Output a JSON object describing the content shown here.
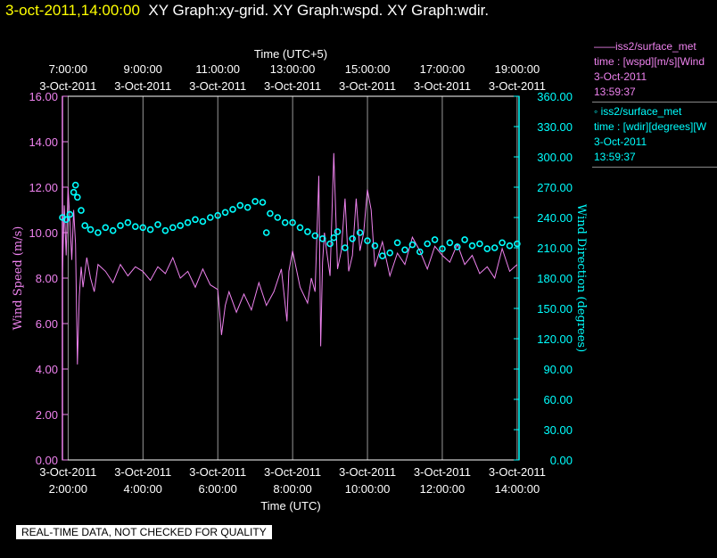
{
  "header": {
    "date": "3-oct-2011,14:00:00",
    "title": "XY Graph:xy-grid.  XY Graph:wspd.  XY Graph:wdir."
  },
  "legend": {
    "wspd": {
      "name": "——iss2/surface_met",
      "desc": "time : [wspd][m/s][Wind",
      "date": "3-Oct-2011",
      "time": "13:59:37"
    },
    "wdir": {
      "name": "◦  iss2/surface_met",
      "desc": "time : [wdir][degrees][W",
      "date": "3-Oct-2011",
      "time": "13:59:37"
    }
  },
  "disclaimer": "REAL-TIME DATA, NOT CHECKED FOR QUALITY",
  "colors": {
    "wspd": "#ee82ee",
    "wdir": "#00ffff",
    "grid": "#ffffff",
    "text": "#ffffff"
  },
  "chart_data": {
    "type": "line",
    "x_axis_bottom": {
      "label": "Time (UTC)",
      "range": [
        1.85,
        14.05
      ],
      "ticks": [
        {
          "x": 2,
          "date": "3-Oct-2011",
          "time": "2:00:00"
        },
        {
          "x": 4,
          "date": "3-Oct-2011",
          "time": "4:00:00"
        },
        {
          "x": 6,
          "date": "3-Oct-2011",
          "time": "6:00:00"
        },
        {
          "x": 8,
          "date": "3-Oct-2011",
          "time": "8:00:00"
        },
        {
          "x": 10,
          "date": "3-Oct-2011",
          "time": "10:00:00"
        },
        {
          "x": 12,
          "date": "3-Oct-2011",
          "time": "12:00:00"
        },
        {
          "x": 14,
          "date": "3-Oct-2011",
          "time": "14:00:00"
        }
      ]
    },
    "x_axis_top": {
      "label": "Time (UTC+5)",
      "ticks": [
        {
          "x": 2,
          "time": "7:00:00",
          "date": "3-Oct-2011"
        },
        {
          "x": 4,
          "time": "9:00:00",
          "date": "3-Oct-2011"
        },
        {
          "x": 6,
          "time": "11:00:00",
          "date": "3-Oct-2011"
        },
        {
          "x": 8,
          "time": "13:00:00",
          "date": "3-Oct-2011"
        },
        {
          "x": 10,
          "time": "15:00:00",
          "date": "3-Oct-2011"
        },
        {
          "x": 12,
          "time": "17:00:00",
          "date": "3-Oct-2011"
        },
        {
          "x": 14,
          "time": "19:00:00",
          "date": "3-Oct-2011"
        }
      ]
    },
    "y_left": {
      "label": "Wind Speed (m/s)",
      "range": [
        0,
        16
      ],
      "ticks": [
        "0.00",
        "2.00",
        "4.00",
        "6.00",
        "8.00",
        "10.00",
        "12.00",
        "14.00",
        "16.00"
      ]
    },
    "y_right": {
      "label": "Wind Direction (degrees)",
      "range": [
        0,
        360
      ],
      "ticks": [
        "0.00",
        "30.00",
        "60.00",
        "90.00",
        "120.00",
        "150.00",
        "180.00",
        "210.00",
        "240.00",
        "270.00",
        "300.00",
        "330.00",
        "360.00"
      ]
    },
    "grid": "vertical",
    "series": [
      {
        "name": "iss2/surface_met",
        "axis": "left",
        "style": "line",
        "x": [
          1.85,
          1.9,
          1.95,
          2.0,
          2.05,
          2.1,
          2.15,
          2.2,
          2.25,
          2.3,
          2.35,
          2.4,
          2.5,
          2.6,
          2.7,
          2.8,
          3.0,
          3.2,
          3.4,
          3.6,
          3.8,
          4.0,
          4.2,
          4.4,
          4.6,
          4.8,
          5.0,
          5.2,
          5.4,
          5.6,
          5.8,
          6.0,
          6.1,
          6.2,
          6.3,
          6.5,
          6.7,
          6.9,
          7.1,
          7.3,
          7.5,
          7.7,
          7.85,
          7.9,
          8.0,
          8.2,
          8.4,
          8.5,
          8.6,
          8.7,
          8.75,
          8.8,
          8.85,
          8.9,
          9.0,
          9.1,
          9.2,
          9.3,
          9.4,
          9.5,
          9.6,
          9.7,
          9.8,
          9.9,
          10.0,
          10.1,
          10.2,
          10.4,
          10.6,
          10.8,
          11.0,
          11.2,
          11.4,
          11.6,
          11.8,
          12.0,
          12.2,
          12.4,
          12.6,
          12.8,
          13.0,
          13.2,
          13.4,
          13.6,
          13.8,
          14.0
        ],
        "y": [
          8.2,
          11.2,
          9.0,
          12.0,
          10.5,
          8.8,
          11.0,
          9.5,
          4.2,
          7.2,
          8.5,
          7.6,
          8.9,
          8.0,
          7.4,
          8.6,
          8.3,
          7.8,
          8.6,
          8.1,
          8.5,
          8.3,
          7.9,
          8.5,
          8.2,
          8.9,
          8.0,
          8.3,
          7.6,
          8.4,
          7.7,
          7.5,
          5.5,
          6.8,
          7.4,
          6.5,
          7.3,
          6.6,
          7.8,
          6.8,
          7.4,
          8.4,
          6.1,
          8.3,
          9.2,
          7.6,
          6.9,
          8.0,
          7.4,
          12.5,
          5.0,
          8.7,
          10.0,
          9.3,
          8.1,
          13.5,
          8.4,
          9.2,
          11.5,
          8.3,
          9.0,
          11.5,
          9.2,
          10.0,
          11.9,
          11.0,
          8.5,
          9.6,
          8.1,
          9.1,
          8.6,
          9.8,
          9.2,
          8.4,
          9.4,
          9.0,
          8.7,
          9.5,
          8.6,
          9.0,
          8.2,
          8.5,
          8.0,
          9.3,
          8.3,
          8.6
        ]
      },
      {
        "name": "iss2/surface_met",
        "axis": "right",
        "style": "markers",
        "x": [
          1.85,
          1.95,
          2.05,
          2.15,
          2.2,
          2.25,
          2.35,
          2.45,
          2.6,
          2.8,
          3.0,
          3.2,
          3.4,
          3.6,
          3.8,
          4.0,
          4.2,
          4.4,
          4.6,
          4.8,
          5.0,
          5.2,
          5.4,
          5.6,
          5.8,
          6.0,
          6.2,
          6.4,
          6.6,
          6.8,
          7.0,
          7.2,
          7.3,
          7.4,
          7.6,
          7.8,
          8.0,
          8.2,
          8.4,
          8.6,
          8.8,
          9.0,
          9.1,
          9.2,
          9.4,
          9.6,
          9.8,
          10.0,
          10.2,
          10.4,
          10.6,
          10.8,
          11.0,
          11.2,
          11.4,
          11.6,
          11.8,
          12.0,
          12.2,
          12.4,
          12.6,
          12.8,
          13.0,
          13.2,
          13.4,
          13.6,
          13.8,
          14.0
        ],
        "y": [
          240,
          238,
          243,
          265,
          272,
          260,
          247,
          232,
          228,
          225,
          230,
          227,
          232,
          235,
          231,
          230,
          228,
          233,
          227,
          230,
          232,
          235,
          238,
          236,
          240,
          242,
          245,
          248,
          252,
          250,
          256,
          255,
          225,
          244,
          240,
          235,
          235,
          230,
          226,
          222,
          219,
          214,
          220,
          226,
          210,
          219,
          225,
          217,
          212,
          202,
          205,
          215,
          208,
          213,
          206,
          214,
          218,
          209,
          215,
          211,
          218,
          212,
          214,
          209,
          210,
          215,
          212,
          214
        ]
      }
    ]
  }
}
